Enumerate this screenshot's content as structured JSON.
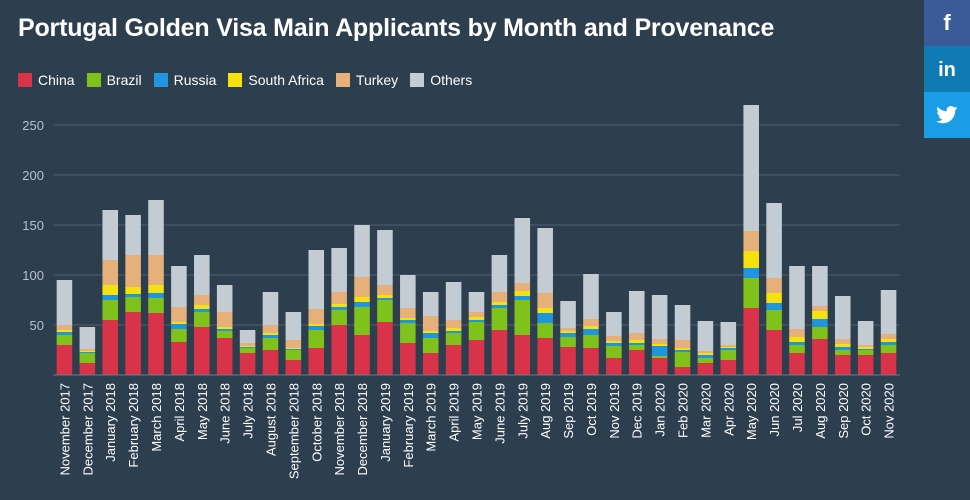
{
  "chart_data": {
    "type": "bar",
    "stacked": true,
    "title": "Portugal Golden Visa Main Applicants by Month and Provenance",
    "ylim": [
      0,
      270
    ],
    "yticks": [
      50,
      100,
      150,
      200,
      250
    ],
    "grid": true,
    "legend_position": "top-left",
    "categories": [
      "November 2017",
      "December 2017",
      "January 2018",
      "February 2018",
      "March 2018",
      "April 2018",
      "May 2018",
      "June 2018",
      "July 2018",
      "August 2018",
      "September 2018",
      "October 2018",
      "November 2018",
      "December 2018",
      "January 2019",
      "February 2019",
      "March 2019",
      "April 2019",
      "May 2019",
      "June 2019",
      "July 2019",
      "Aug 2019",
      "Sep 2019",
      "Oct 2019",
      "Nov 2019",
      "Dec 2019",
      "Jan 2020",
      "Feb 2020",
      "Mar 2020",
      "Apr 2020",
      "May 2020",
      "Jun 2020",
      "Jul 2020",
      "Aug 2020",
      "Sep 2020",
      "Oct 2020",
      "Nov 2020"
    ],
    "series": [
      {
        "name": "China",
        "color": "#d9334a",
        "values": [
          30,
          12,
          55,
          63,
          62,
          33,
          48,
          37,
          22,
          25,
          15,
          27,
          50,
          40,
          53,
          32,
          22,
          30,
          35,
          45,
          40,
          37,
          28,
          27,
          17,
          25,
          17,
          8,
          12,
          15,
          67,
          45,
          22,
          36,
          20,
          20,
          22
        ]
      },
      {
        "name": "Brazil",
        "color": "#7ec21b",
        "values": [
          10,
          10,
          20,
          15,
          15,
          13,
          15,
          7,
          5,
          12,
          10,
          18,
          15,
          28,
          22,
          20,
          15,
          12,
          18,
          22,
          35,
          15,
          10,
          13,
          12,
          5,
          2,
          15,
          5,
          10,
          30,
          20,
          8,
          12,
          5,
          5,
          8
        ]
      },
      {
        "name": "Russia",
        "color": "#1f95e0",
        "values": [
          3,
          1,
          5,
          3,
          5,
          5,
          3,
          2,
          1,
          3,
          1,
          4,
          3,
          5,
          2,
          3,
          5,
          2,
          2,
          3,
          4,
          10,
          4,
          6,
          3,
          2,
          10,
          2,
          3,
          2,
          10,
          7,
          3,
          8,
          3,
          1,
          3
        ]
      },
      {
        "name": "South Africa",
        "color": "#f5e10c",
        "values": [
          2,
          1,
          10,
          7,
          8,
          2,
          4,
          2,
          1,
          2,
          1,
          2,
          3,
          5,
          3,
          2,
          2,
          3,
          3,
          3,
          5,
          5,
          2,
          3,
          2,
          3,
          2,
          2,
          2,
          1,
          17,
          10,
          5,
          8,
          3,
          2,
          3
        ]
      },
      {
        "name": "Turkey",
        "color": "#e6b07b",
        "values": [
          5,
          2,
          25,
          32,
          30,
          15,
          10,
          15,
          3,
          8,
          8,
          15,
          12,
          20,
          10,
          10,
          15,
          8,
          5,
          10,
          8,
          15,
          3,
          7,
          5,
          7,
          5,
          8,
          2,
          2,
          20,
          15,
          8,
          5,
          5,
          2,
          5
        ]
      },
      {
        "name": "Others",
        "color": "#c3ccd2",
        "values": [
          45,
          22,
          50,
          40,
          55,
          41,
          40,
          27,
          13,
          33,
          28,
          59,
          44,
          52,
          55,
          33,
          24,
          38,
          20,
          37,
          65,
          65,
          27,
          45,
          24,
          42,
          44,
          35,
          30,
          23,
          126,
          75,
          63,
          40,
          43,
          24,
          44
        ]
      }
    ]
  },
  "social": {
    "facebook": {
      "icon": "facebook-icon",
      "color": "#3a5b98"
    },
    "linkedin": {
      "icon": "linkedin-icon",
      "color": "#0f7ab4"
    },
    "twitter": {
      "icon": "twitter-icon",
      "color": "#1b9de6"
    }
  }
}
